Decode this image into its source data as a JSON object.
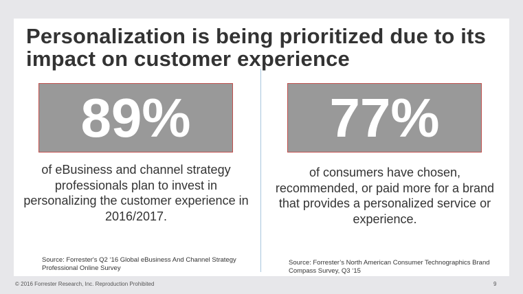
{
  "slide": {
    "title": "Personalization is being prioritized due to its impact on customer experience",
    "left": {
      "stat": "89%",
      "description": "of eBusiness and channel strategy professionals plan to invest in personalizing the customer experience in 2016/2017.",
      "source": "Source: Forrester's Q2 ‘16 Global eBusiness And Channel Strategy Professional Online Survey"
    },
    "right": {
      "stat": "77%",
      "description": "of consumers have chosen, recommended, or paid more for a brand that provides a personalized service or experience.",
      "source": "Source: Forrester’s North American Consumer Technographics Brand Compass Survey, Q3 ‘15"
    }
  },
  "footer": {
    "copyright": "© 2016 Forrester Research, Inc. Reproduction Prohibited",
    "page_number": "9"
  },
  "colors": {
    "background": "#e7e7ea",
    "stat_box": "#999999",
    "stat_border": "#c0504d",
    "divider": "#a7c5dc",
    "text": "#333333"
  }
}
